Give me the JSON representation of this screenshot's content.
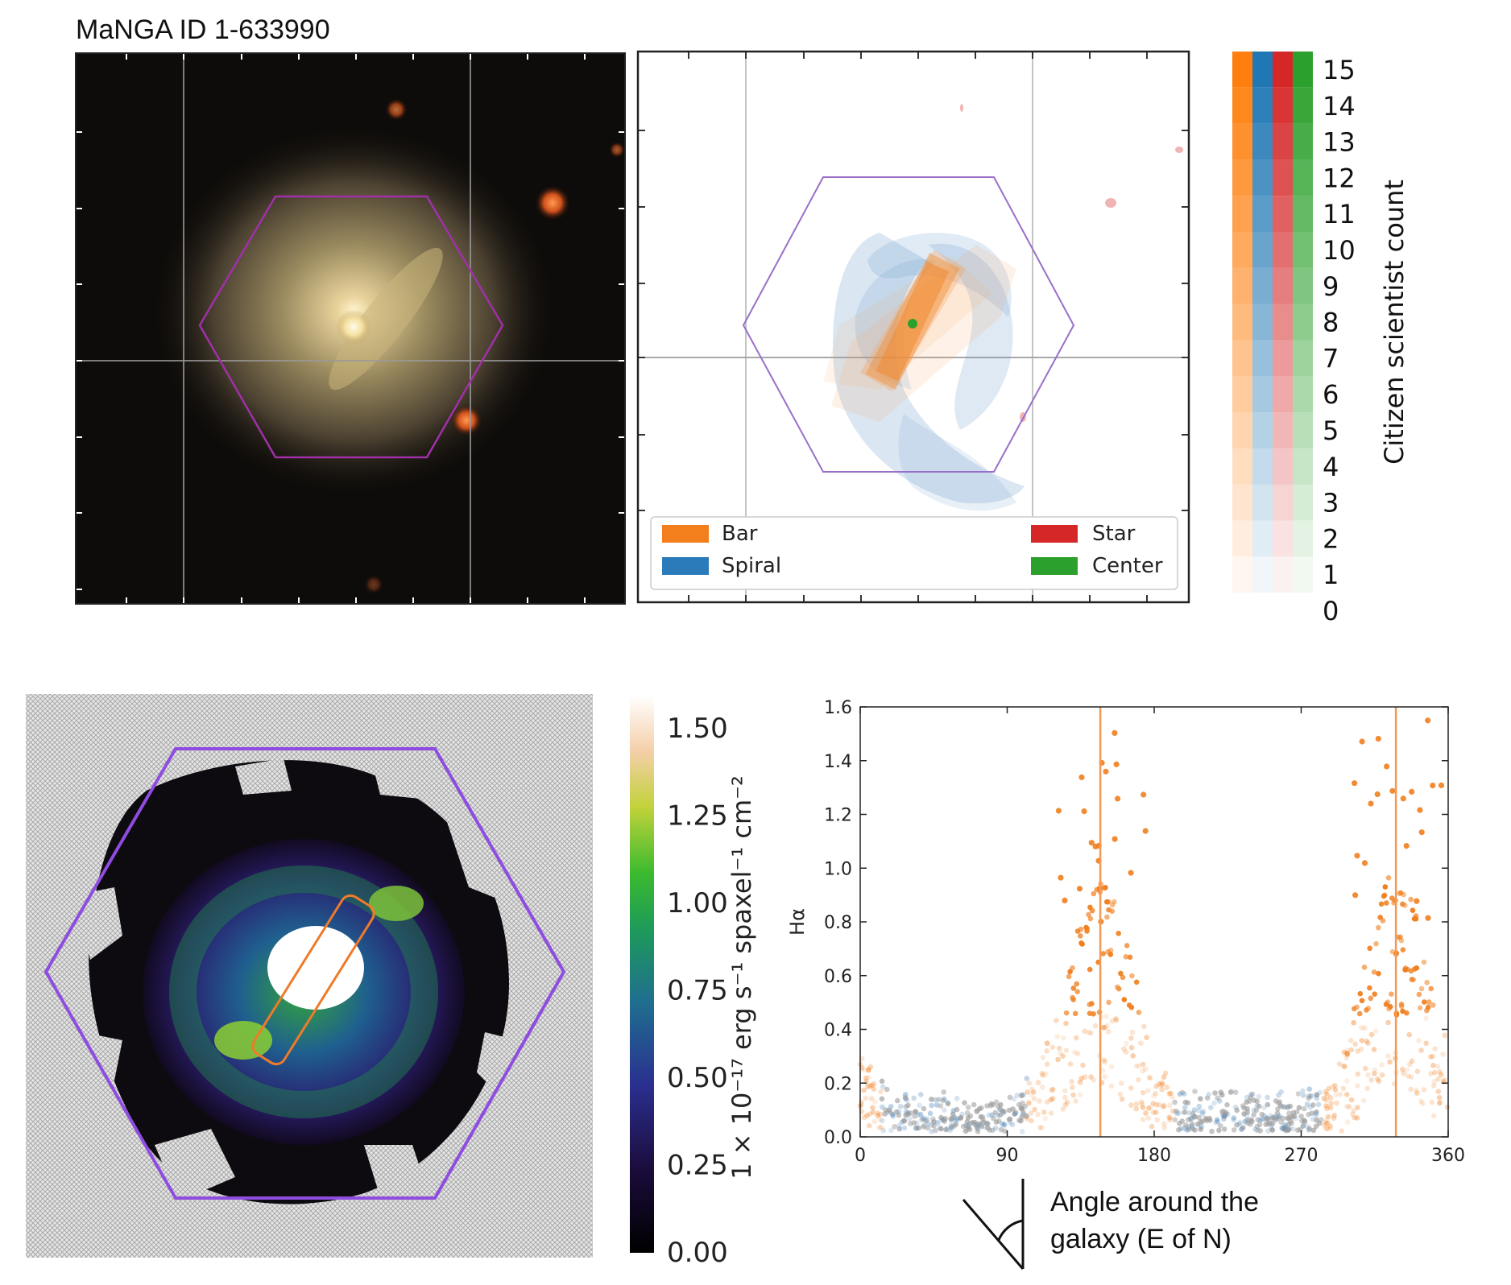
{
  "figure": {
    "title": "MaNGA ID 1-633990",
    "legend": [
      {
        "label": "Bar",
        "color": "#f27f1b"
      },
      {
        "label": "Spiral",
        "color": "#2b7bba"
      },
      {
        "label": "Star",
        "color": "#d62728"
      },
      {
        "label": "Center",
        "color": "#2ca02c"
      }
    ],
    "count_bar": {
      "label": "Citizen scientist count",
      "ticks": [
        "15",
        "14",
        "13",
        "12",
        "11",
        "10",
        "9",
        "8",
        "7",
        "6",
        "5",
        "4",
        "3",
        "2",
        "1",
        "0"
      ],
      "colors": [
        "#ff7f0e",
        "#1f77b4",
        "#d62728",
        "#2ca02c"
      ]
    },
    "flux_bar": {
      "label": "1 × 10⁻¹⁷ erg s⁻¹ spaxel⁻¹ cm⁻²",
      "ticks": [
        "1.50",
        "1.25",
        "1.00",
        "0.75",
        "0.50",
        "0.25",
        "0.00"
      ]
    },
    "angle_label_line1": "Angle around the",
    "angle_label_line2": "galaxy (E of N)"
  },
  "chart_data": {
    "type": "scatter",
    "ylabel": "Hα",
    "xlabel": "Angle around the galaxy (E of N)",
    "xlim": [
      0,
      360
    ],
    "ylim": [
      0,
      1.6
    ],
    "xticks": [
      "0",
      "90",
      "180",
      "270",
      "360"
    ],
    "yticks": [
      "0.0",
      "0.2",
      "0.4",
      "0.6",
      "0.8",
      "1.0",
      "1.2",
      "1.4",
      "1.6"
    ],
    "bar_angles": [
      147,
      328
    ],
    "colors": {
      "bar": "#f07f1f",
      "spiral": "#5b8fbf",
      "other": "#9a9a9a",
      "vline": "#f29a55"
    },
    "point_classes": [
      "bar",
      "spiral",
      "other"
    ],
    "grid": false
  }
}
